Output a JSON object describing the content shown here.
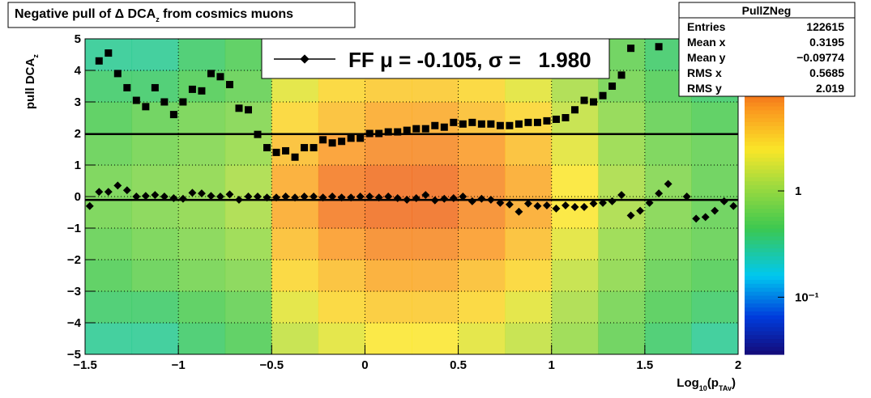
{
  "chart_data": {
    "type": "heatmap",
    "title": [
      {
        "text": "Negative pull of Δ DCA"
      },
      {
        "text": "z",
        "sub": true
      },
      {
        "text": "  from cosmics muons"
      }
    ],
    "x_label": [
      {
        "text": "Log"
      },
      {
        "text": "10",
        "sub": true
      },
      {
        "text": "(p"
      },
      {
        "text": "TAv",
        "sub": true
      },
      {
        "text": ")"
      }
    ],
    "y_label": [
      {
        "text": "pull DCA"
      },
      {
        "text": "z",
        "sub": true
      }
    ],
    "xlim": [
      -1.5,
      2
    ],
    "ylim": [
      -5,
      5
    ],
    "xticks": [
      {
        "value": -1.5,
        "label": "−1.5"
      },
      {
        "value": -1,
        "label": "−1"
      },
      {
        "value": -0.5,
        "label": "−0.5"
      },
      0,
      0.5,
      1,
      1.5,
      2
    ],
    "yticks": [
      {
        "value": -5,
        "label": "−5"
      },
      {
        "value": -4,
        "label": "−4"
      },
      {
        "value": -3,
        "label": "−3"
      },
      {
        "value": -2,
        "label": "−2"
      },
      {
        "value": -1,
        "label": "−1"
      },
      0,
      1,
      2,
      3,
      4,
      5
    ],
    "grid": true,
    "log_z": true,
    "zlim": [
      0.029,
      27
    ],
    "zticks": [
      {
        "value": 0.1,
        "label": "10⁻¹"
      },
      1
    ],
    "xbins": [
      -1.5,
      -1.25,
      -1,
      -0.75,
      -0.5,
      -0.25,
      0,
      0.25,
      0.5,
      0.75,
      1,
      1.25,
      1.5,
      1.75,
      2
    ],
    "ybins": [
      -5,
      -4,
      -3,
      -2,
      -1,
      0,
      1,
      2,
      3,
      4,
      5
    ],
    "z": [
      [
        0.3,
        0.3,
        0.4,
        0.5,
        1.5,
        2,
        2.5,
        2.5,
        2,
        1.5,
        1,
        0.6,
        0.4,
        0.3
      ],
      [
        0.4,
        0.4,
        0.5,
        0.6,
        2,
        3,
        3.5,
        3.5,
        3,
        2,
        1.2,
        0.7,
        0.5,
        0.4
      ],
      [
        0.5,
        0.6,
        0.7,
        0.8,
        3,
        4,
        5,
        5,
        4,
        3,
        1.5,
        0.9,
        0.6,
        0.5
      ],
      [
        0.6,
        0.7,
        0.8,
        1,
        4,
        6,
        7,
        7,
        6,
        4,
        2,
        1,
        0.7,
        0.6
      ],
      [
        0.7,
        0.8,
        0.9,
        1.2,
        5,
        8,
        9,
        9,
        7,
        5,
        2.5,
        1.2,
        0.8,
        0.6
      ],
      [
        0.7,
        0.8,
        0.9,
        1.2,
        5,
        8,
        9,
        9,
        7,
        5,
        2.5,
        1.2,
        0.8,
        0.6
      ],
      [
        0.6,
        0.7,
        0.8,
        1,
        4,
        6,
        7,
        7,
        6,
        4,
        2,
        1,
        0.7,
        0.6
      ],
      [
        0.5,
        0.6,
        0.7,
        0.8,
        3,
        4,
        5,
        5,
        4,
        3,
        1.5,
        0.9,
        0.6,
        0.5
      ],
      [
        0.4,
        0.4,
        0.5,
        0.6,
        2,
        3,
        3.5,
        3.5,
        3,
        2,
        1.2,
        0.7,
        0.5,
        0.4
      ],
      [
        0.3,
        0.3,
        0.4,
        0.5,
        1.5,
        2,
        2.5,
        2.5,
        2,
        1.5,
        1,
        0.6,
        0.4,
        0.3
      ]
    ],
    "x": [
      -1.475,
      -1.425,
      -1.375,
      -1.325,
      -1.275,
      -1.225,
      -1.175,
      -1.125,
      -1.075,
      -1.025,
      -0.975,
      -0.925,
      -0.875,
      -0.825,
      -0.775,
      -0.725,
      -0.675,
      -0.625,
      -0.575,
      -0.525,
      -0.475,
      -0.425,
      -0.375,
      -0.325,
      -0.275,
      -0.225,
      -0.175,
      -0.125,
      -0.075,
      -0.025,
      0.025,
      0.075,
      0.125,
      0.175,
      0.225,
      0.275,
      0.325,
      0.375,
      0.425,
      0.475,
      0.525,
      0.575,
      0.625,
      0.675,
      0.725,
      0.775,
      0.825,
      0.875,
      0.925,
      0.975,
      1.025,
      1.075,
      1.125,
      1.175,
      1.225,
      1.275,
      1.325,
      1.375,
      1.425,
      1.475,
      1.525,
      1.575,
      1.625,
      1.675,
      1.725,
      1.775,
      1.825,
      1.875,
      1.925,
      1.975
    ],
    "series": [
      {
        "marker": "diamond",
        "color": "#000000",
        "values": [
          -0.3,
          0.15,
          0.15,
          0.35,
          0.2,
          0.0,
          0.02,
          0.05,
          0.0,
          -0.05,
          -0.07,
          0.12,
          0.1,
          0.02,
          0.0,
          0.07,
          -0.1,
          0.0,
          0.0,
          -0.03,
          -0.03,
          0.0,
          -0.03,
          0.0,
          0.0,
          -0.03,
          0.0,
          -0.03,
          -0.03,
          0.0,
          0.0,
          -0.03,
          0.0,
          -0.05,
          -0.1,
          -0.05,
          0.05,
          -0.12,
          -0.07,
          -0.05,
          0.0,
          -0.15,
          -0.07,
          -0.1,
          -0.2,
          -0.25,
          -0.48,
          -0.22,
          -0.3,
          -0.28,
          -0.38,
          -0.28,
          -0.33,
          -0.33,
          -0.22,
          -0.2,
          -0.15,
          0.05,
          -0.6,
          -0.45,
          -0.2,
          0.1,
          0.4,
          null,
          0.0,
          -0.7,
          -0.65,
          -0.45,
          -0.15,
          -0.3
        ]
      },
      {
        "marker": "square",
        "color": "#000000",
        "values": [
          null,
          4.3,
          4.55,
          3.9,
          3.45,
          3.05,
          2.85,
          3.45,
          3.0,
          2.6,
          3.0,
          3.4,
          3.35,
          3.9,
          3.8,
          3.55,
          2.8,
          2.75,
          1.97,
          1.55,
          1.4,
          1.45,
          1.25,
          1.55,
          1.55,
          1.8,
          1.7,
          1.75,
          1.85,
          1.85,
          2.0,
          2.0,
          2.05,
          2.05,
          2.1,
          2.15,
          2.15,
          2.25,
          2.2,
          2.35,
          2.3,
          2.35,
          2.3,
          2.3,
          2.25,
          2.25,
          2.3,
          2.35,
          2.35,
          2.4,
          2.45,
          2.5,
          2.75,
          3.05,
          3.0,
          3.2,
          3.5,
          3.85,
          4.7,
          null,
          null,
          4.75,
          null,
          null,
          null,
          null,
          null,
          null,
          null,
          null
        ]
      }
    ],
    "fit": {
      "mu": -0.105,
      "sigma": 1.98
    },
    "legend": {
      "label": "FF μ = -0.105, σ =   1.980",
      "position": "top"
    },
    "stats": {
      "name": "PullZNeg",
      "rows": [
        [
          "Entries",
          "122615"
        ],
        [
          "Mean x",
          "0.3195"
        ],
        [
          "Mean y",
          "−0.09774"
        ],
        [
          "RMS x",
          "0.5685"
        ],
        [
          "RMS y",
          "2.019"
        ]
      ]
    }
  }
}
